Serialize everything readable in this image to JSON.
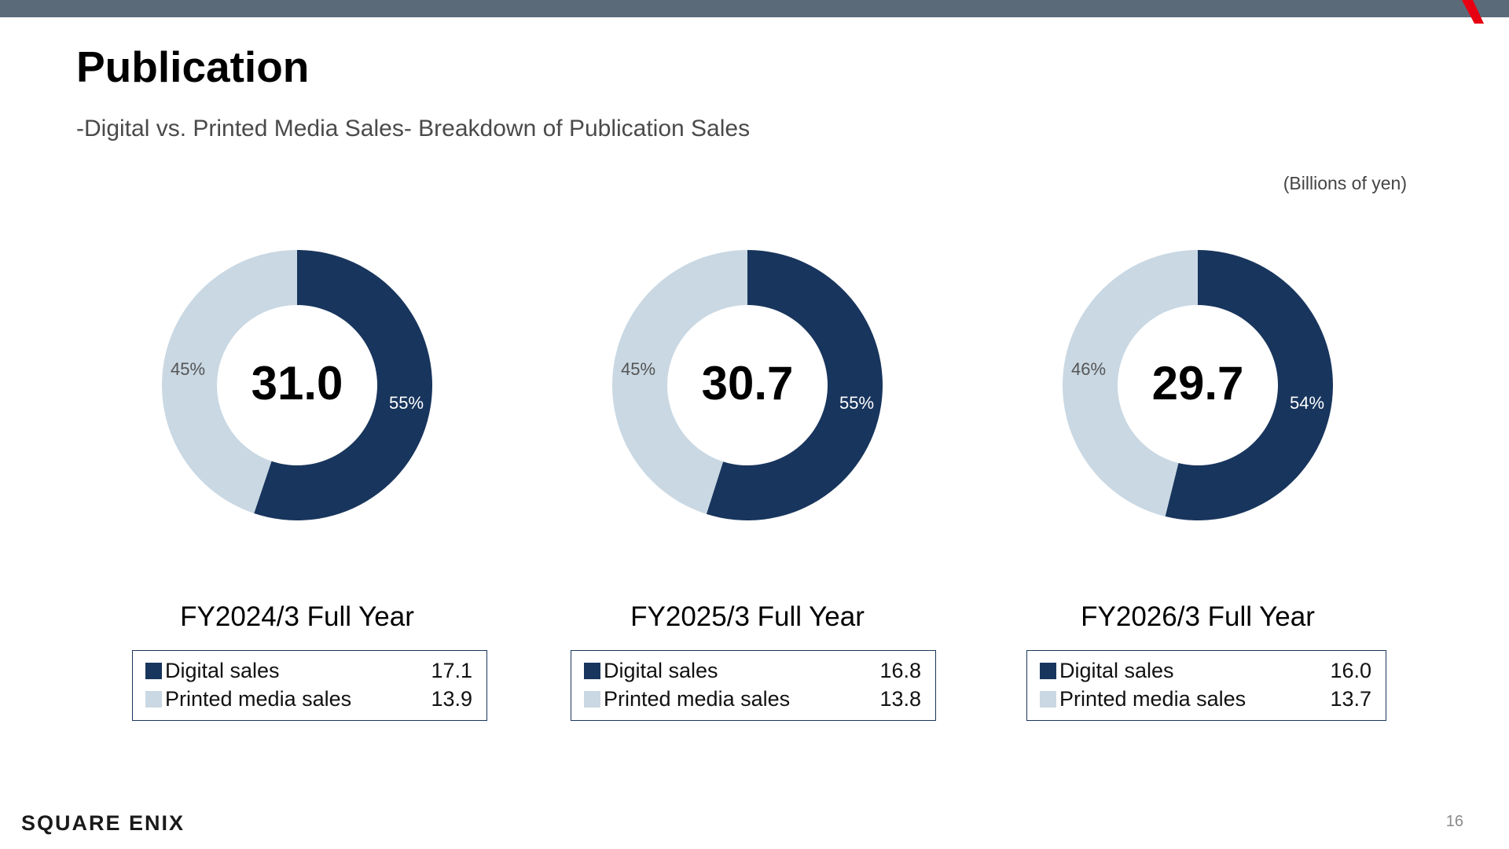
{
  "header": {
    "title": "Publication",
    "subtitle": "-Digital vs. Printed Media Sales- Breakdown of Publication Sales",
    "unit_note": "(Billions of yen)"
  },
  "colors": {
    "top_bar": "#5b6a79",
    "digital": "#18355d",
    "printed": "#c9d8e3",
    "accent_red": "#e60012"
  },
  "legend_labels": {
    "digital": "Digital sales",
    "printed": "Printed media sales"
  },
  "chart_data": [
    {
      "type": "pie",
      "donut": true,
      "period": "FY2024/3 Full Year",
      "total": "31.0",
      "categories": [
        "Digital sales",
        "Printed media sales"
      ],
      "values": [
        17.1,
        13.9
      ],
      "value_labels": [
        "17.1",
        "13.9"
      ],
      "percent_labels": [
        "55%",
        "45%"
      ]
    },
    {
      "type": "pie",
      "donut": true,
      "period": "FY2025/3 Full Year",
      "total": "30.7",
      "categories": [
        "Digital sales",
        "Printed media sales"
      ],
      "values": [
        16.8,
        13.8
      ],
      "value_labels": [
        "16.8",
        "13.8"
      ],
      "percent_labels": [
        "55%",
        "45%"
      ]
    },
    {
      "type": "pie",
      "donut": true,
      "period": "FY2026/3 Full Year",
      "total": "29.7",
      "categories": [
        "Digital sales",
        "Printed media sales"
      ],
      "values": [
        16.0,
        13.7
      ],
      "value_labels": [
        "16.0",
        "13.7"
      ],
      "percent_labels": [
        "54%",
        "46%"
      ]
    }
  ],
  "footer": {
    "logo_text": "SQUARE ENIX",
    "page_number": "16"
  }
}
